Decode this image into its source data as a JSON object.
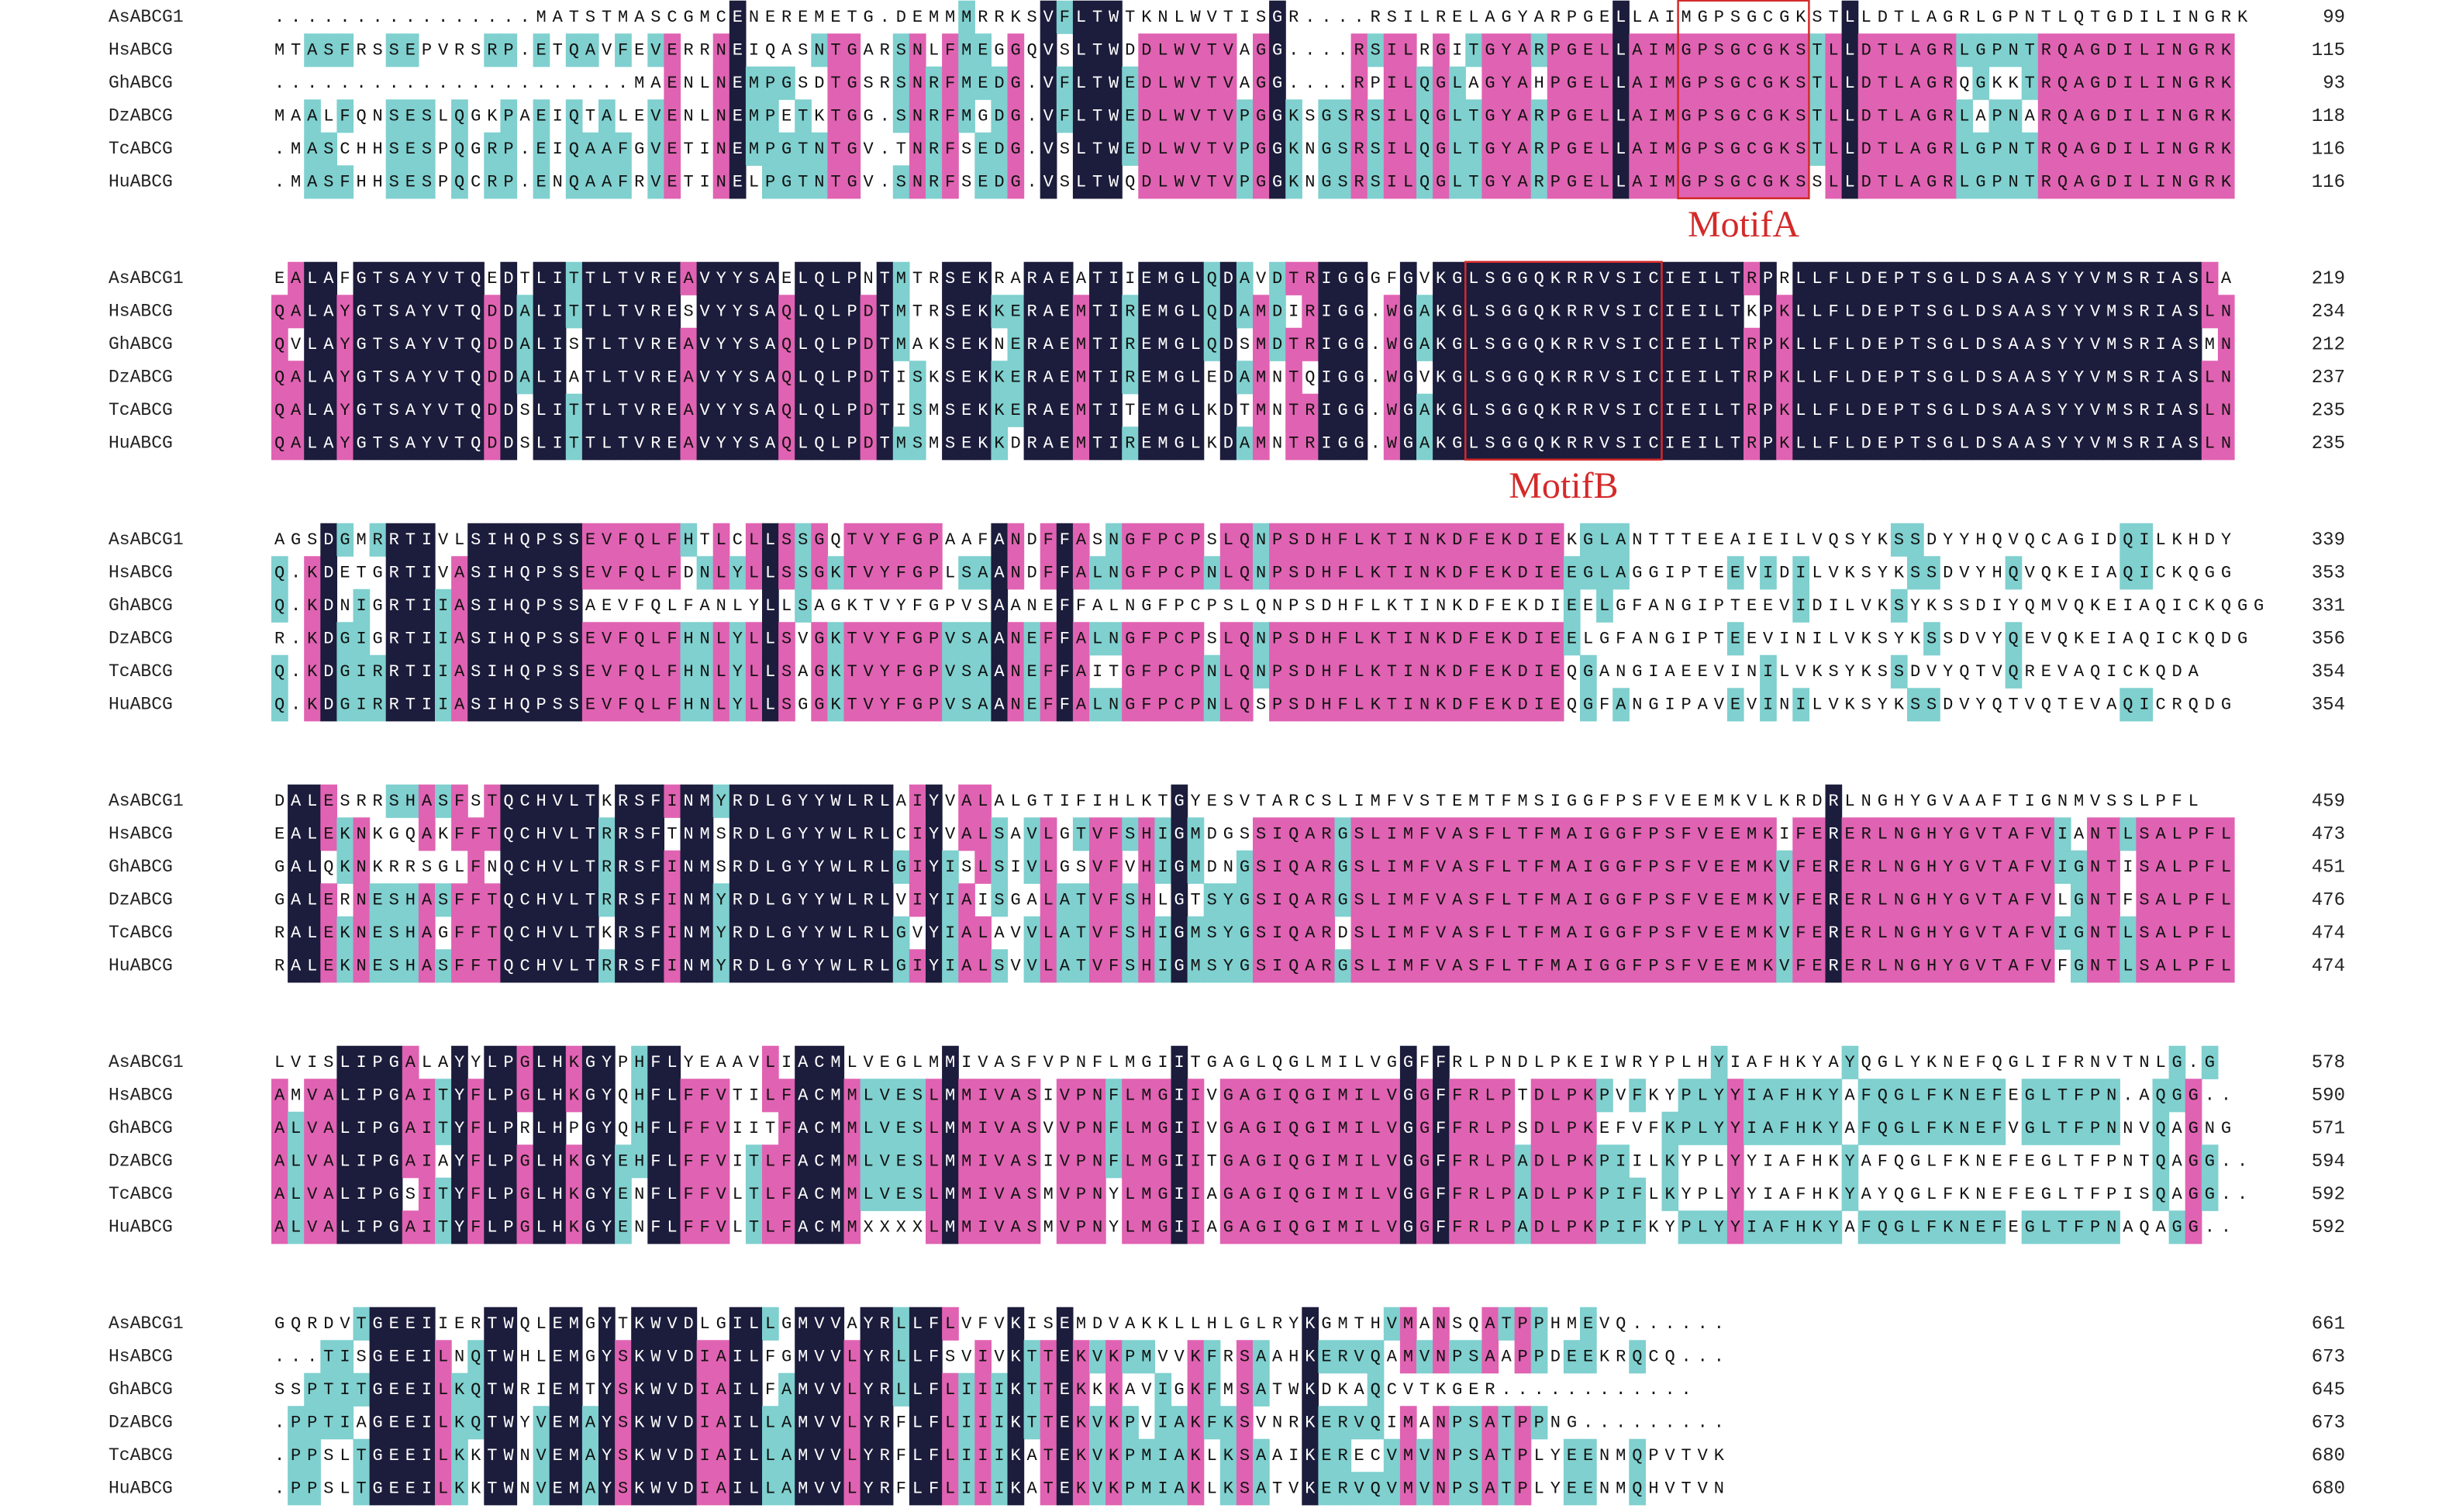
{
  "blocks": [
    {
      "motif": "MotifA",
      "rows": [
        {
          "name": "AsABCG1",
          "sequence": "................MATSTMASCGMCENEREMETG.DEMMMRRKSVFLTWTKNLWVTISGR....RSILRELAGYARPGELLAIMGPSGCGKSTLLDTLAGRLGPNTLQTGDILINGRK",
          "end": 99
        },
        {
          "name": "HsABCG",
          "sequence": "MTASFRSSEPVRSRP.ETQAVFEVERRNEIQASNTGARSNLFMEGGQVSLTWDDLWVTVAGG....RSILRGITGYARPGELLAIMGPSGCGKSTLLDTLAGRLGPNTRQAGDILINGRK",
          "end": 115
        },
        {
          "name": "GhABCG",
          "sequence": "......................MAENLNEMPGSDTGSRSNRFMEDG.VFLTWEDLWVTVAGG....RPILQGLAGYAHPGELLAIMGPSGCGKSTLLDTLAGRQGKKTRQAGDILINGRK",
          "end": 93
        },
        {
          "name": "DzABCG",
          "sequence": "MAALFQNSESLQGKPAEIQTALEVENLNEMPETKTGG.SNRFMGDG.VFLTWEDLWVTVPGGKSGSRSILQGLTGYARPGELLAIMGPSGCGKSTLLDTLAGRLAPNARQAGDILINGRK",
          "end": 118
        },
        {
          "name": "TcABCG",
          "sequence": ".MASCHHSESPQGRP.EIQAAFGVETINEMPGTNTGV.TNRFSEDG.VSLTWEDLWVTVPGGKNGSRSILQGLTGYARPGELLAIMGPSGCGKSTLLDTLAGRLGPNTRQAGDILINGRK",
          "end": 116
        },
        {
          "name": "HuABCG",
          "sequence": ".MASFHHSESPQCRP.ENQAAFRVETINELPGTNTGV.SNRFSEDG.VSLTWQDLWVTVPGGKNGSRSILQGLTGYARPGELLAIMGPSGCGKSSLLDTLAGRLGPNTRQAGDILINGRK",
          "end": 116
        }
      ]
    },
    {
      "motif": "MotifB",
      "rows": [
        {
          "name": "AsABCG1",
          "sequence": "EALAFGTSAYVTQEDTLITTLTVREAVYYSAELQLPNTMTRSEKRARAEATIIEMGLQDAVDTRIGGGFGVKGLSGGQKRRVSICIEILTRPRLLFLDEPTSGLDSAASYYVMSRIASLA",
          "end": 219
        },
        {
          "name": "HsABCG",
          "sequence": "QALAYGTSAYVTQDDALITTLTVRESVYYSAQLQLPDTMTRSEKKERAEMTIREMGLQDAMDIRIGG.WGAKGLSGGQKRRVSICIEILTKPKLLFLDEPTSGLDSAASYYVMSRIASLN",
          "end": 234
        },
        {
          "name": "GhABCG",
          "sequence": "QVLAYGTSAYVTQDDALISTLTVREAVYYSAQLQLPDTMAKSEKNERAEMTIREMGLQDSMDTRIGG.WGAKGLSGGQKRRVSICIEILTRPKLLFLDEPTSGLDSAASYYVMSRIASMN",
          "end": 212
        },
        {
          "name": "DzABCG",
          "sequence": "QALAYGTSAYVTQDDALIATLTVREAVYYSAQLQLPDTISKSEKKERAEMTIREMGLEDAMNTQIGG.WGVKGLSGGQKRRVSICIEILTRPKLLFLDEPTSGLDSAASYYVMSRIASLN",
          "end": 237
        },
        {
          "name": "TcABCG",
          "sequence": "QALAYGTSAYVTQDDSLITTLTVREAVYYSAQLQLPDTISMSEKKERAEMTITEMGLKDTMNTRIGG.WGAKGLSGGQKRRVSICIEILTRPKLLFLDEPTSGLDSAASYYVMSRIASLN",
          "end": 235
        },
        {
          "name": "HuABCG",
          "sequence": "QALAYGTSAYVTQDDSLITTLTVREAVYYSAQLQLPDTMSMSEKKDRAEMTIREMGLKDAMNTRIGG.WGAKGLSGGQKRRVSICIEILTRPKLLFLDEPTSGLDSAASYYVMSRIASLN",
          "end": 235
        }
      ]
    },
    {
      "rows": [
        {
          "name": "AsABCG1",
          "sequence": "AGSDGMRRTIVLSIHQPSSEVFQLFHTLCLLSSGQTVYFGPAAFANDFFASNGFPCPSLQNPSDHFLKTINKDFEKDIEKGLANTTTEEAIEILVQSYKSSDYYHQVQCAGIDQILKHDY",
          "end": 339
        },
        {
          "name": "HsABCG",
          "sequence": "Q.KDETGRTIVASIHQPSSEVFQLFDNLYLLSSGKTVYFGPLSAANDFFALNGFPCPNLQNPSDHFLKTINKDFEKDIEEGLAGGIPTEEVIDILVKSYKSSDVYHQVQKEIAQICKQGG",
          "end": 353
        },
        {
          "name": "GhABCG",
          "sequence": "Q.KDNIGRTIIASIHQPSSAEVFQLFANLYLLSAGKTVYFGPVSAANEFFALNGFPCPSLQNPSDHFLKTINKDFEKDIEELGFANGIPTEEVIDILVKSYKSSDIYQMVQKEIAQICKQGG",
          "end": 331
        },
        {
          "name": "DzABCG",
          "sequence": "R.KDGIGRTIIASIHQPSSEVFQLFHNLYLLSVGKTVYFGPVSAANEFFALNGFPCPSLQNPSDHFLKTINKDFEKDIEELGFANGIPTEEVINILVKSYKSSDVYQEVQKEIAQICKQDG",
          "end": 356
        },
        {
          "name": "TcABCG",
          "sequence": "Q.KDGIRRTIIASIHQPSSEVFQLFHNLYLLSAGKTVYFGPVSAANEFFAITGFPCPNLQNPSDHFLKTINKDFEKDIEQGANGIAEEVINILVKSYKSSDVYQTVQREVAQICKQDA",
          "end": 354
        },
        {
          "name": "HuABCG",
          "sequence": "Q.KDGIRRTIIASIHQPSSEVFQLFHNLYLLSGGKTVYFGPVSAANEFFALNGFPCPNLQSPSDHFLKTINKDFEKDIEQGFANGIPAVEVINILVKSYKSSDVYQTVQTEVAQICRQDG",
          "end": 354
        }
      ]
    },
    {
      "rows": [
        {
          "name": "AsABCG1",
          "sequence": "DALESRRSHASFSTQCHVLTKRSFINMYRDLGYYWLRLAIYVALALGTIFIHLKTGYESVTARCSLIMFVSTEMTFMSIGGFPSFVEEMKVLKRDRLNGHYGVAAFTIGNMVSSLPFL",
          "end": 459
        },
        {
          "name": "HsABCG",
          "sequence": "EALEKNKGQAKFFTQCHVLTRRSFTNMSRDLGYYWLRLCIYVALSAVLGTVFSHIGMDGSSIQARGSLIMFVASFLTFMAIGGFPSFVEEMKIFERERLNGHYGVTAFVIANTLSALPFL",
          "end": 473
        },
        {
          "name": "GhABCG",
          "sequence": "GALQKNKRRSGLFNQCHVLTRRSFINMSRDLGYYWLRLGIYISLSIVLGSVFVHIGMDNGSIQARGSLIMFVASFLTFMAIGGFPSFVEEMKVFERERLNGHYGVTAFVIGNTISALPFL",
          "end": 451
        },
        {
          "name": "DzABCG",
          "sequence": "GALERNESHASFFTQCHVLTRRSFINMYRDLGYYWLRLVIYIAISGALATVFSHLGTSYGSIQARGSLIMFVASFLTFMAIGGFPSFVEEMKVFERERLNGHYGVTAFVLGNTFSALPFL",
          "end": 476
        },
        {
          "name": "TcABCG",
          "sequence": "RALEKNESHAGFFTQCHVLTKRSFINMYRDLGYYWLRLGVYIALAVVLATVFSHIGMSYGSIQARDSLIMFVASFLTFMAIGGFPSFVEEMKVFERERLNGHYGVTAFVIGNTLSALPFL",
          "end": 474
        },
        {
          "name": "HuABCG",
          "sequence": "RALEKNESHASFFTQCHVLTRRSFINMYRDLGYYWLRLGIYIALSVVLATVFSHIGMSYGSIQARGSLIMFVASFLTFMAIGGFPSFVEEMKVFERERLNGHYGVTAFVFGNTLSALPFL",
          "end": 474
        }
      ]
    },
    {
      "rows": [
        {
          "name": "AsABCG1",
          "sequence": "LVISLIPGALAYYLPGLHKGYPHFLYEAAVLIACMLVEGLMMIVASFVPNFLMGIITGAGLQGLMILVGGFFRLPNDLPKEIWRYPLHYIAFHKYAYQGLYKNEFQGLIFRNVTNLG.G",
          "end": 578
        },
        {
          "name": "HsABCG",
          "sequence": "AMVALIPGAITYFLPGLHKGYQHFLFFVTILFACMMLVESLMMIVASIVPNFLMGIIVGAGIQGIMILVGGFFRLPTDLPKPVFKYPLYYIAFHKYAFQGLFKNEFEGLTFPN.AQGG..",
          "end": 590
        },
        {
          "name": "GhABCG",
          "sequence": "ALVALIPGAITYFLPRLHPGYQHFLFFVIITFACMMLVESLMMIVASVVPNFLMGIIVGAGIQGIMILVGGFFRLPSDLPKEFVFKPLYYIAFHKYAFQGLFKNEFVGLTFPNNVQAGNG",
          "end": 571
        },
        {
          "name": "DzABCG",
          "sequence": "ALVALIPGAIAYFLPGLHKGYEHFLFFVITLFACMMLVESLMMIVASIVPNFLMGIITGAGIQGIMILVGGFFRLPADLPKPIILKYPLYYIAFHKYAFQGLFKNEFEGLTFPNTQAGG..",
          "end": 594
        },
        {
          "name": "TcABCG",
          "sequence": "ALVALIPGSITYFLPGLHKGYENFLFFVLTLFACMMLVESLMMIVASMVPNYLMGIIAGAGIQGIMILVGGFFRLPADLPKPIFLKYPLYYIAFHKYAYQGLFKNEFEGLTFPISQAGG..",
          "end": 592
        },
        {
          "name": "HuABCG",
          "sequence": "ALVALIPGAITYFLPGLHKGYENFLFFVLTLFACMMXXXXLMMIVASMVPNYLMGIIAGAGIQGIMILVGGFFRLPADLPKPIFKYPLYYIAFHKYAFQGLFKNEFEGLTFPNAQAGG..",
          "end": 592
        }
      ]
    },
    {
      "rows": [
        {
          "name": "AsABCG1",
          "sequence": "GQRDVTGEEIIERTWQLEMGYTKWVDLGILLGMVVAYRLLFLVFVKISEMDVAKKLLHLGLRYKGMTHVMANSQATPPHMEVQ......",
          "end": 661
        },
        {
          "name": "HsABCG",
          "sequence": "...TISGEEILNQTWHLEMGYSKWVDIAILFGMVVLYRLLFSVIVKTTEKVKPMVVKFRSAAHKERVQAMVNPSAAPPDEEKRQCQ...",
          "end": 673
        },
        {
          "name": "GhABCG",
          "sequence": "SSPTITGEEILKQTWRIEMTYSKWVDIAILFAMVVLYRLLFLIIIKTTEKKKAVIGKFMSATWKDKAQCVTKGER............",
          "end": 645
        },
        {
          "name": "DzABCG",
          "sequence": ".PPTIAGEEILKQTWYVEMAYSKWVDIAILLAMVVLYRFLFLIIIKTTEKVKPVIAKFKSVNRKERVQIMANPSATPPNG.........",
          "end": 673
        },
        {
          "name": "TcABCG",
          "sequence": ".PPSLTGEEILKKTWNVEMAYSKWVDIAILLAMVVLYRFLFLIIIKATEKVKPMIAKLKSAAIKERECVMVNPSATPLYEENMQPVTVK",
          "end": 680
        },
        {
          "name": "HuABCG",
          "sequence": ".PPSLTGEEILKKTWNVEMAYSKWVDIAILLAMVVLYRFLFLIIIKATEKVKPMIAKLKSATVKERVQVMVNPSATPLYEENMQHVTVN",
          "end": 680
        }
      ]
    }
  ]
}
